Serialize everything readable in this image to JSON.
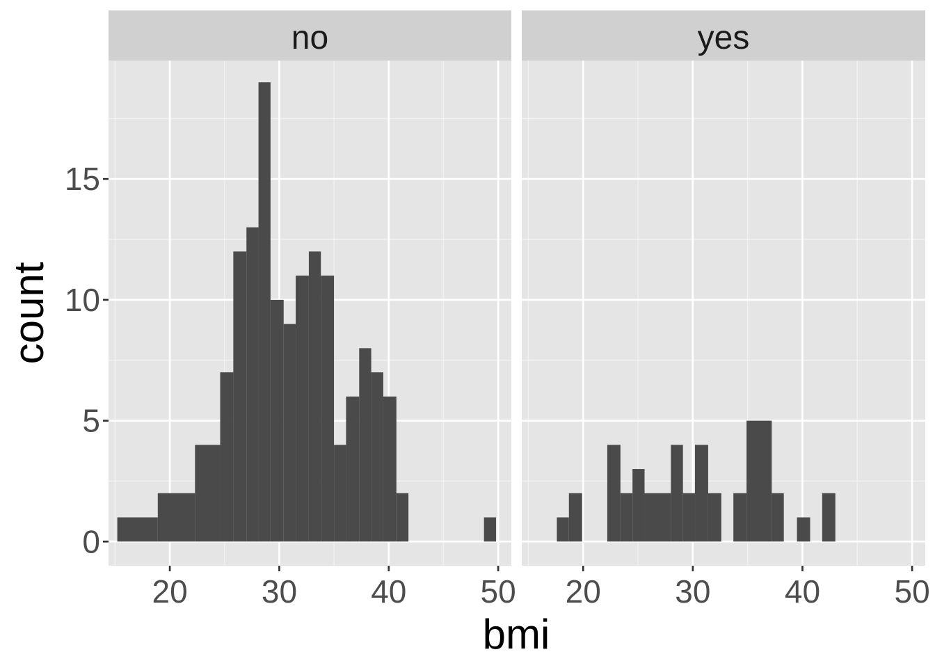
{
  "chart_data": {
    "type": "bar",
    "subtype": "histogram-faceted",
    "xlabel": "bmi",
    "ylabel": "count",
    "x_range": [
      14.4,
      51.2
    ],
    "y_range": [
      -1,
      19.9
    ],
    "x_ticks": [
      20,
      30,
      40,
      50
    ],
    "x_tick_labels": [
      "20",
      "30",
      "40",
      "50"
    ],
    "y_ticks": [
      0,
      5,
      10,
      15
    ],
    "y_tick_labels": [
      "0",
      "5",
      "10",
      "15"
    ],
    "grid": true,
    "bar_color": "#4a4a4a",
    "panel_background": "#e5e5e5",
    "strip_background": "#d0d0d0",
    "facets": [
      {
        "label": "no",
        "bins": [
          {
            "x0": 15.2,
            "x1": 18.9,
            "count": 1
          },
          {
            "x0": 18.9,
            "x1": 22.3,
            "count": 2
          },
          {
            "x0": 22.3,
            "x1": 24.6,
            "count": 4
          },
          {
            "x0": 24.6,
            "x1": 25.8,
            "count": 7
          },
          {
            "x0": 25.8,
            "x1": 27.0,
            "count": 12
          },
          {
            "x0": 27.0,
            "x1": 28.1,
            "count": 13
          },
          {
            "x0": 28.1,
            "x1": 29.2,
            "count": 19
          },
          {
            "x0": 29.2,
            "x1": 30.4,
            "count": 10
          },
          {
            "x0": 30.4,
            "x1": 31.5,
            "count": 9
          },
          {
            "x0": 31.5,
            "x1": 32.7,
            "count": 11
          },
          {
            "x0": 32.7,
            "x1": 33.8,
            "count": 12
          },
          {
            "x0": 33.8,
            "x1": 35.0,
            "count": 11
          },
          {
            "x0": 35.0,
            "x1": 36.1,
            "count": 4
          },
          {
            "x0": 36.1,
            "x1": 37.3,
            "count": 6
          },
          {
            "x0": 37.3,
            "x1": 38.4,
            "count": 8
          },
          {
            "x0": 38.4,
            "x1": 39.5,
            "count": 7
          },
          {
            "x0": 39.5,
            "x1": 40.7,
            "count": 6
          },
          {
            "x0": 40.7,
            "x1": 41.8,
            "count": 2
          },
          {
            "x0": 48.7,
            "x1": 49.8,
            "count": 1
          }
        ]
      },
      {
        "label": "yes",
        "bins": [
          {
            "x0": 17.6,
            "x1": 18.7,
            "count": 1
          },
          {
            "x0": 18.7,
            "x1": 19.9,
            "count": 2
          },
          {
            "x0": 22.2,
            "x1": 23.4,
            "count": 4
          },
          {
            "x0": 23.4,
            "x1": 24.5,
            "count": 2
          },
          {
            "x0": 24.5,
            "x1": 25.6,
            "count": 3
          },
          {
            "x0": 25.6,
            "x1": 28.0,
            "count": 2
          },
          {
            "x0": 28.0,
            "x1": 29.1,
            "count": 4
          },
          {
            "x0": 29.1,
            "x1": 30.2,
            "count": 2
          },
          {
            "x0": 30.2,
            "x1": 31.4,
            "count": 4
          },
          {
            "x0": 31.4,
            "x1": 32.6,
            "count": 2
          },
          {
            "x0": 33.7,
            "x1": 34.9,
            "count": 2
          },
          {
            "x0": 34.9,
            "x1": 37.2,
            "count": 5
          },
          {
            "x0": 37.2,
            "x1": 38.3,
            "count": 2
          },
          {
            "x0": 39.5,
            "x1": 40.7,
            "count": 1
          },
          {
            "x0": 41.8,
            "x1": 43.0,
            "count": 2
          }
        ]
      }
    ]
  }
}
